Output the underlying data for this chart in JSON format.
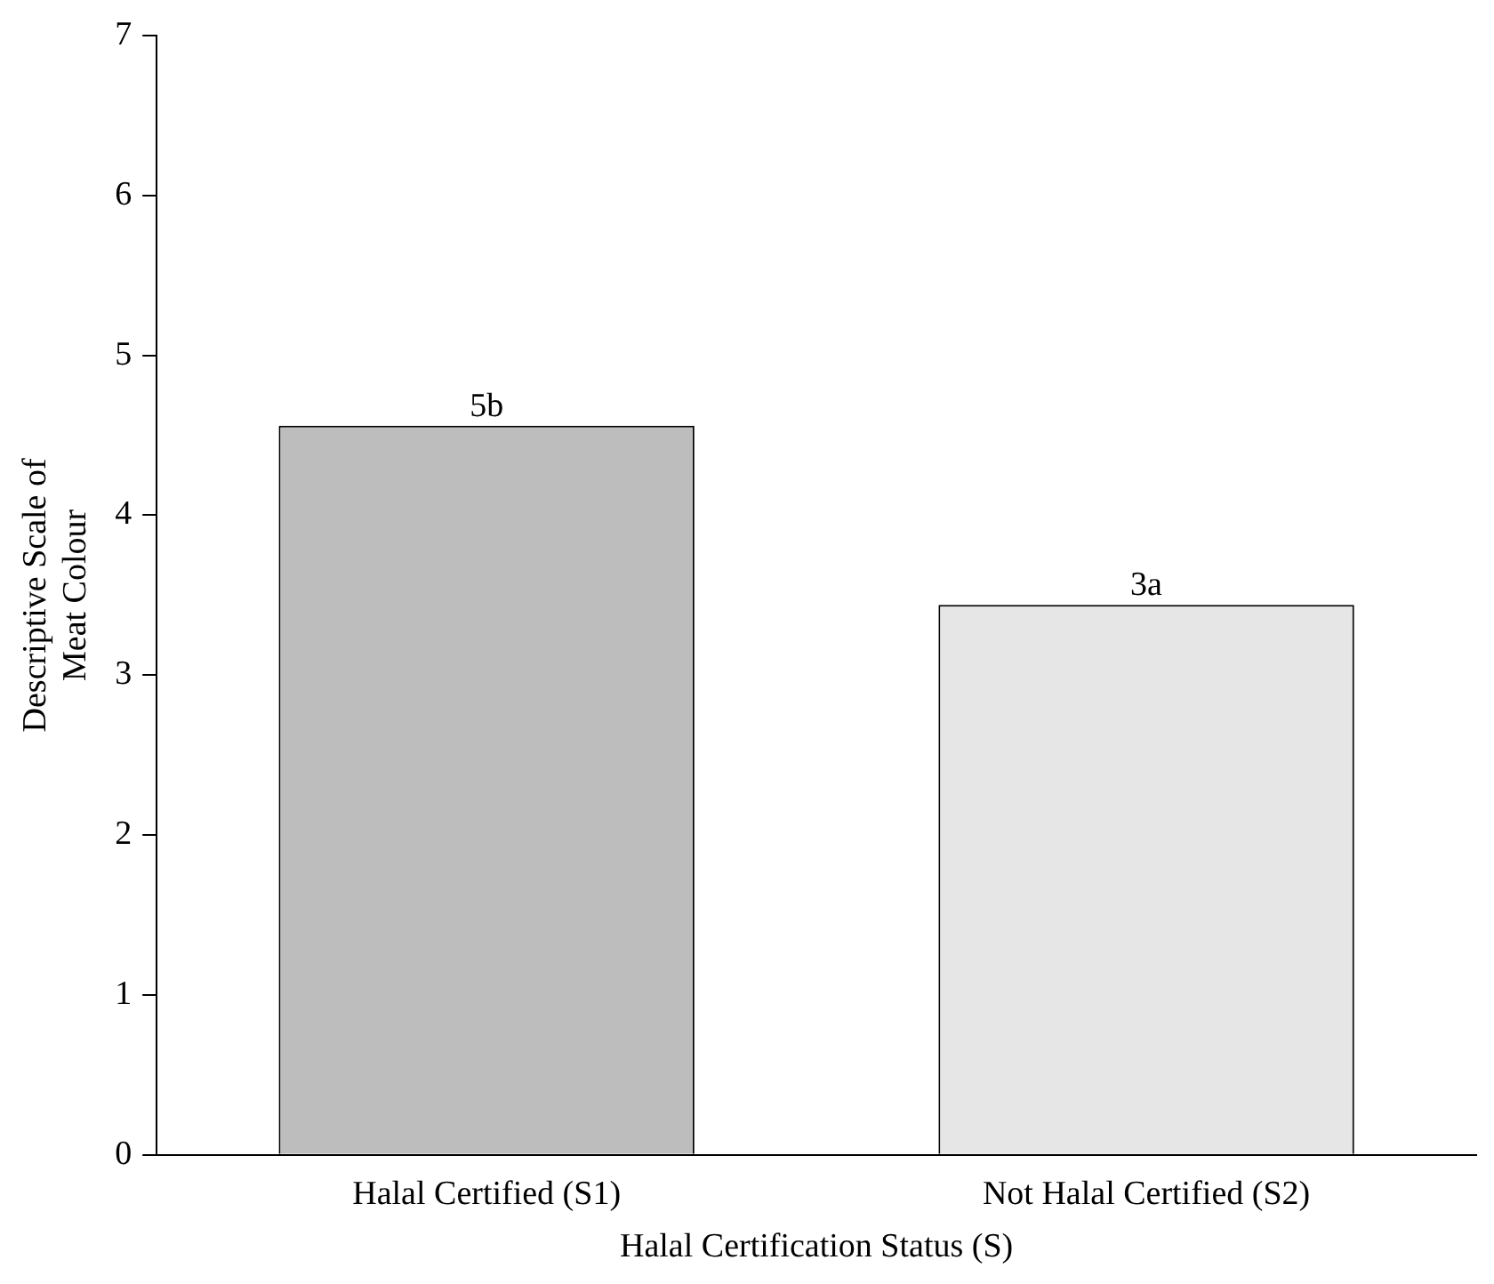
{
  "chart_data": {
    "type": "bar",
    "xlabel": "Halal Certification Status (S)",
    "ylabel": "Descriptive Scale of Meat Colour",
    "categories": [
      "Halal Certified (S1)",
      "Not Halal Certified (S2)"
    ],
    "values": [
      4.56,
      3.44
    ],
    "colors": [
      "#bdbdbd",
      "#e6e6e6"
    ],
    "value_labels": [
      "5b",
      "3a"
    ],
    "ylim": [
      0,
      7
    ],
    "yticks": [
      0,
      1,
      2,
      3,
      4,
      5,
      6,
      7
    ],
    "grid": false,
    "legend": false
  }
}
